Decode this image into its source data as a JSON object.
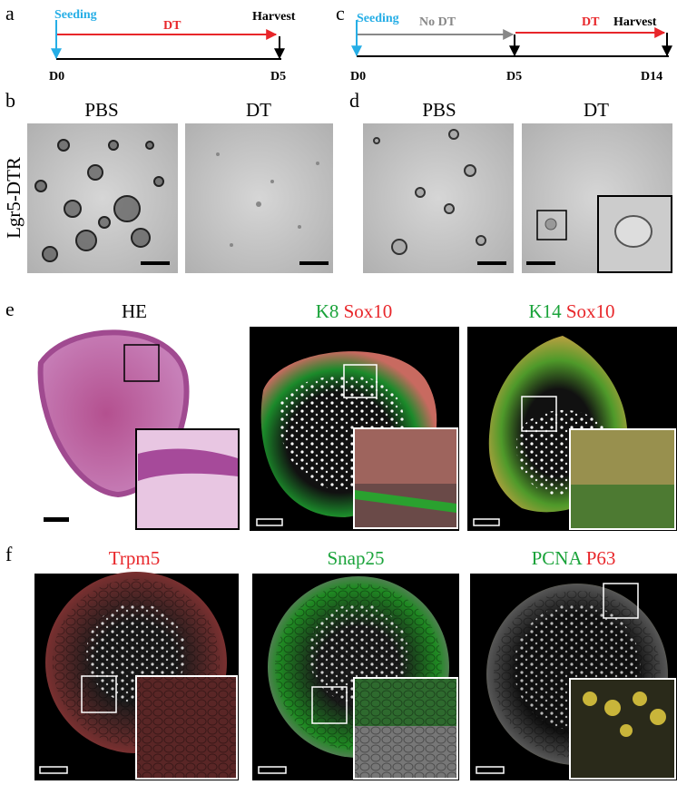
{
  "a": {
    "letter": "a",
    "seeding": "Seeding",
    "treatment": "DT",
    "harvest": "Harvest",
    "start": "D0",
    "end": "D5"
  },
  "b": {
    "letter": "b",
    "conditions": [
      "PBS",
      "DT"
    ],
    "row_label": "Lgr5-DTR"
  },
  "c": {
    "letter": "c",
    "seeding": "Seeding",
    "pre": "No DT",
    "treatment": "DT",
    "harvest": "Harvest",
    "days": [
      "D0",
      "D5",
      "D14"
    ]
  },
  "d": {
    "letter": "d",
    "conditions": [
      "PBS",
      "DT"
    ]
  },
  "e": {
    "letter": "e",
    "stains": [
      [
        "HE"
      ],
      [
        "K8",
        "Sox10"
      ],
      [
        "K14",
        "Sox10"
      ]
    ]
  },
  "f": {
    "letter": "f",
    "stains": [
      [
        "Trpm5"
      ],
      [
        "Snap25"
      ],
      [
        "PCNA",
        "P63"
      ]
    ]
  }
}
